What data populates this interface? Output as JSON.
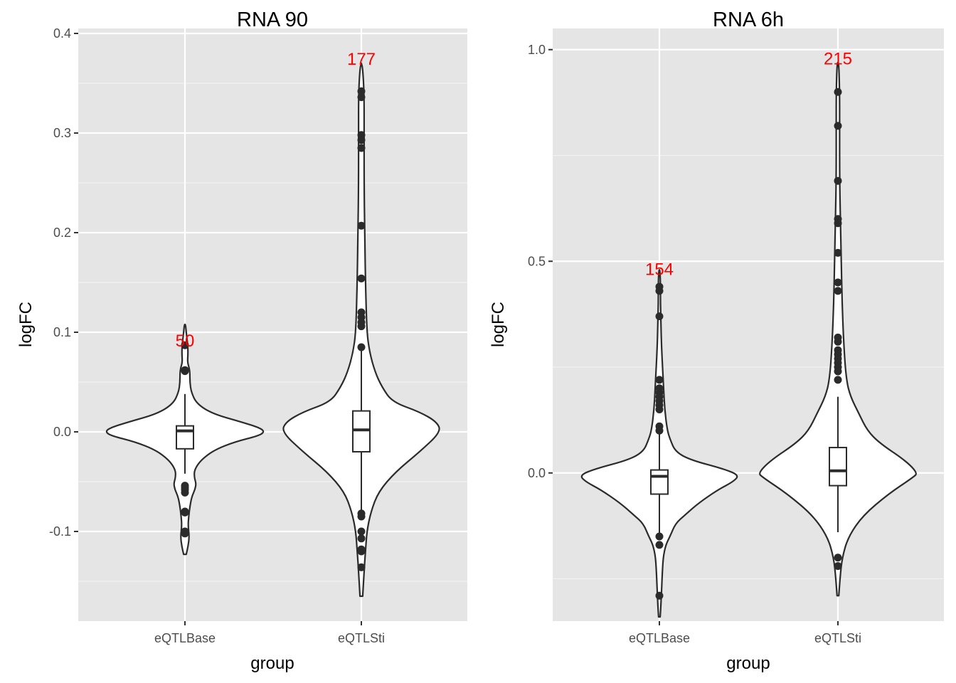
{
  "chart_data": [
    {
      "type": "violin",
      "title": "RNA 90",
      "xlabel": "group",
      "ylabel": "logFC",
      "categories": [
        "eQTLBase",
        "eQTLSti"
      ],
      "ylim": [
        -0.19,
        0.405
      ],
      "yticks": [
        -0.1,
        0.0,
        0.1,
        0.2,
        0.3,
        0.4
      ],
      "ytick_labels": [
        "-0.1",
        "0.0",
        "0.1",
        "0.2",
        "0.3",
        "0.4"
      ],
      "grid": true,
      "count_label_color": "#ff0000",
      "groups": [
        {
          "name": "eQTLBase",
          "count_label": "50",
          "count_label_y": 0.092,
          "box": {
            "q1": -0.017,
            "median": 0.001,
            "q3": 0.006,
            "whisker_low": -0.042,
            "whisker_high": 0.038
          },
          "violin": [
            [
              -0.123,
              0.004
            ],
            [
              -0.115,
              0.01
            ],
            [
              -0.105,
              0.014
            ],
            [
              -0.095,
              0.01
            ],
            [
              -0.085,
              0.012
            ],
            [
              -0.075,
              0.016
            ],
            [
              -0.065,
              0.022
            ],
            [
              -0.058,
              0.032
            ],
            [
              -0.052,
              0.036
            ],
            [
              -0.046,
              0.03
            ],
            [
              -0.038,
              0.03
            ],
            [
              -0.028,
              0.052
            ],
            [
              -0.018,
              0.095
            ],
            [
              -0.01,
              0.16
            ],
            [
              -0.004,
              0.235
            ],
            [
              0.0,
              0.255
            ],
            [
              0.004,
              0.24
            ],
            [
              0.01,
              0.18
            ],
            [
              0.018,
              0.09
            ],
            [
              0.028,
              0.038
            ],
            [
              0.04,
              0.02
            ],
            [
              0.05,
              0.016
            ],
            [
              0.058,
              0.016
            ],
            [
              0.064,
              0.014
            ],
            [
              0.07,
              0.008
            ],
            [
              0.08,
              0.01
            ],
            [
              0.09,
              0.008
            ],
            [
              0.1,
              0.004
            ],
            [
              0.108,
              0.002
            ]
          ],
          "outliers": [
            0.087,
            0.062,
            0.061,
            -0.054,
            -0.056,
            -0.058,
            -0.061,
            -0.08,
            -0.081,
            -0.1,
            -0.102
          ]
        },
        {
          "name": "eQTLSti",
          "count_label": "177",
          "count_label_y": 0.375,
          "box": {
            "q1": -0.02,
            "median": 0.002,
            "q3": 0.021,
            "whisker_low": -0.08,
            "whisker_high": 0.083
          },
          "violin": [
            [
              -0.165,
              0.002
            ],
            [
              -0.14,
              0.004
            ],
            [
              -0.12,
              0.006
            ],
            [
              -0.1,
              0.008
            ],
            [
              -0.08,
              0.014
            ],
            [
              -0.06,
              0.025
            ],
            [
              -0.04,
              0.05
            ],
            [
              -0.02,
              0.085
            ],
            [
              0.0,
              0.116
            ],
            [
              0.01,
              0.11
            ],
            [
              0.02,
              0.085
            ],
            [
              0.03,
              0.045
            ],
            [
              0.045,
              0.03
            ],
            [
              0.06,
              0.02
            ],
            [
              0.08,
              0.012
            ],
            [
              0.1,
              0.008
            ],
            [
              0.15,
              0.006
            ],
            [
              0.2,
              0.005
            ],
            [
              0.25,
              0.004
            ],
            [
              0.3,
              0.004
            ],
            [
              0.34,
              0.004
            ],
            [
              0.365,
              0.002
            ],
            [
              0.37,
              0.0
            ]
          ],
          "outliers": [
            0.342,
            0.336,
            0.298,
            0.293,
            0.285,
            0.207,
            0.154,
            0.12,
            0.115,
            0.11,
            0.106,
            0.085,
            -0.082,
            -0.085,
            -0.1,
            -0.107,
            -0.118,
            -0.12,
            -0.136
          ]
        }
      ]
    },
    {
      "type": "violin",
      "title": "RNA 6h",
      "xlabel": "group",
      "ylabel": "logFC",
      "categories": [
        "eQTLBase",
        "eQTLSti"
      ],
      "ylim": [
        -0.35,
        1.05
      ],
      "yticks": [
        0.0,
        0.5,
        1.0
      ],
      "ytick_labels": [
        "0.0",
        "0.5",
        "1.0"
      ],
      "grid": true,
      "count_label_color": "#ff0000",
      "groups": [
        {
          "name": "eQTLBase",
          "count_label": "154",
          "count_label_y": 0.483,
          "box": {
            "q1": -0.05,
            "median": -0.008,
            "q3": 0.007,
            "whisker_low": -0.148,
            "whisker_high": 0.093
          },
          "violin": [
            [
              -0.34,
              0.003
            ],
            [
              -0.31,
              0.006
            ],
            [
              -0.28,
              0.008
            ],
            [
              -0.25,
              0.01
            ],
            [
              -0.2,
              0.014
            ],
            [
              -0.17,
              0.024
            ],
            [
              -0.15,
              0.04
            ],
            [
              -0.12,
              0.06
            ],
            [
              -0.1,
              0.095
            ],
            [
              -0.07,
              0.15
            ],
            [
              -0.04,
              0.22
            ],
            [
              -0.02,
              0.28
            ],
            [
              -0.005,
              0.3
            ],
            [
              0.01,
              0.24
            ],
            [
              0.03,
              0.12
            ],
            [
              0.05,
              0.06
            ],
            [
              0.08,
              0.04
            ],
            [
              0.1,
              0.03
            ],
            [
              0.15,
              0.02
            ],
            [
              0.2,
              0.016
            ],
            [
              0.25,
              0.012
            ],
            [
              0.3,
              0.008
            ],
            [
              0.35,
              0.006
            ],
            [
              0.4,
              0.004
            ],
            [
              0.45,
              0.004
            ],
            [
              0.48,
              0.002
            ]
          ],
          "outliers": [
            0.44,
            0.43,
            0.37,
            0.22,
            0.2,
            0.19,
            0.18,
            0.17,
            0.16,
            0.15,
            0.11,
            0.1,
            -0.15,
            -0.17,
            -0.29
          ]
        },
        {
          "name": "eQTLSti",
          "count_label": "215",
          "count_label_y": 0.98,
          "box": {
            "q1": -0.03,
            "median": 0.005,
            "q3": 0.06,
            "whisker_low": -0.14,
            "whisker_high": 0.18
          },
          "violin": [
            [
              -0.29,
              0.002
            ],
            [
              -0.25,
              0.005
            ],
            [
              -0.2,
              0.01
            ],
            [
              -0.15,
              0.025
            ],
            [
              -0.1,
              0.06
            ],
            [
              -0.05,
              0.12
            ],
            [
              -0.01,
              0.18
            ],
            [
              0.0,
              0.19
            ],
            [
              0.03,
              0.16
            ],
            [
              0.07,
              0.1
            ],
            [
              0.1,
              0.07
            ],
            [
              0.14,
              0.05
            ],
            [
              0.18,
              0.03
            ],
            [
              0.22,
              0.02
            ],
            [
              0.3,
              0.014
            ],
            [
              0.4,
              0.01
            ],
            [
              0.5,
              0.008
            ],
            [
              0.6,
              0.006
            ],
            [
              0.7,
              0.004
            ],
            [
              0.8,
              0.004
            ],
            [
              0.9,
              0.004
            ],
            [
              0.97,
              0.002
            ]
          ],
          "outliers": [
            0.9,
            0.82,
            0.69,
            0.6,
            0.59,
            0.52,
            0.45,
            0.43,
            0.32,
            0.31,
            0.29,
            0.28,
            0.27,
            0.26,
            0.25,
            0.24,
            0.22,
            -0.2,
            -0.22
          ]
        }
      ]
    }
  ]
}
